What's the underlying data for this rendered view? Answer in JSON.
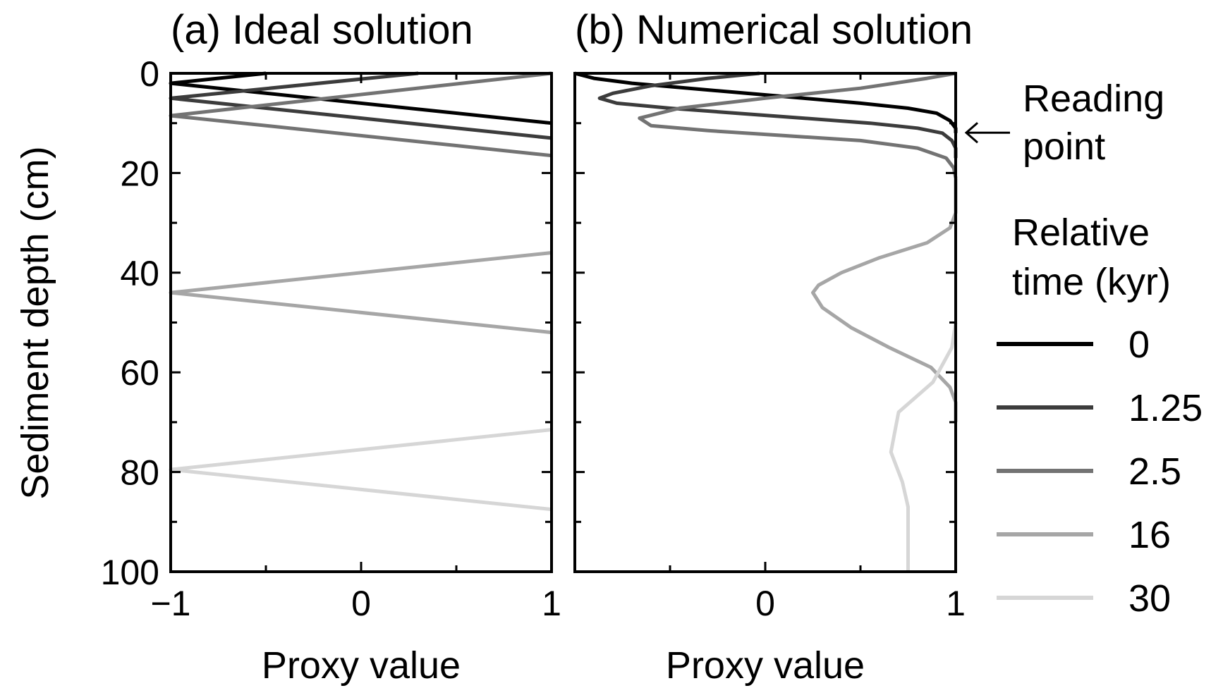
{
  "chart_data": [
    {
      "type": "line",
      "title": "(a) Ideal solution",
      "xlabel": "Proxy value",
      "ylabel": "Sediment depth (cm)",
      "xlim": [
        -1,
        1
      ],
      "ylim": [
        0,
        100
      ],
      "y_inverted": true,
      "x_ticks": [
        -1,
        0,
        1
      ],
      "x_tick_labels": [
        "−1",
        "0",
        "1"
      ],
      "y_ticks": [
        0,
        20,
        40,
        60,
        80,
        100
      ],
      "y_tick_labels": [
        "0",
        "20",
        "40",
        "60",
        "80",
        "100"
      ],
      "series": [
        {
          "name": "0",
          "color": "#000000",
          "x": [
            -0.5,
            -1.0,
            1.0
          ],
          "y": [
            0,
            2,
            10
          ]
        },
        {
          "name": "1.25",
          "color": "#3c3c3c",
          "x": [
            0.3,
            -1.0,
            1.0
          ],
          "y": [
            0,
            5,
            13
          ]
        },
        {
          "name": "2.5",
          "color": "#737373",
          "x": [
            1.0,
            -1.0,
            1.0
          ],
          "y": [
            0,
            8.5,
            16.5
          ]
        },
        {
          "name": "16",
          "color": "#a6a6a6",
          "x": [
            1.0,
            -1.0,
            1.0
          ],
          "y": [
            36,
            44,
            52
          ]
        },
        {
          "name": "30",
          "color": "#d6d6d6",
          "x": [
            1.0,
            -1.0,
            1.0
          ],
          "y": [
            71.5,
            79.5,
            87.5
          ]
        }
      ]
    },
    {
      "type": "line",
      "title": "(b) Numerical solution",
      "xlabel": "Proxy value",
      "xlim": [
        -1,
        1
      ],
      "ylim": [
        0,
        100
      ],
      "y_inverted": true,
      "x_ticks": [
        0,
        1
      ],
      "x_tick_labels": [
        "0",
        "1"
      ],
      "annotation": "Reading point",
      "annotation_depth": 11.5,
      "legend_title": "Relative time (kyr)",
      "legend_position": "right",
      "series": [
        {
          "name": "0",
          "color": "#000000",
          "x": [
            -1.0,
            -0.9,
            -0.7,
            -0.4,
            -0.1,
            0.2,
            0.5,
            0.75,
            0.9,
            0.97,
            1.0,
            1.0
          ],
          "y": [
            0,
            1,
            2,
            3,
            4,
            5,
            6,
            7,
            8,
            9.5,
            11,
            12
          ]
        },
        {
          "name": "1.25",
          "color": "#3c3c3c",
          "x": [
            -0.03,
            -0.3,
            -0.6,
            -0.8,
            -0.87,
            -0.78,
            -0.5,
            -0.15,
            0.2,
            0.55,
            0.8,
            0.93,
            0.98,
            1.0,
            1.0
          ],
          "y": [
            0,
            1,
            2.5,
            4,
            5,
            6,
            7,
            8,
            9,
            10,
            11,
            12,
            13.5,
            15,
            17
          ]
        },
        {
          "name": "2.5",
          "color": "#737373",
          "x": [
            1.0,
            0.85,
            0.5,
            0.0,
            -0.45,
            -0.66,
            -0.6,
            -0.3,
            0.1,
            0.5,
            0.8,
            0.95,
            0.99,
            1.0
          ],
          "y": [
            0,
            1,
            3,
            5,
            7,
            9,
            10.5,
            11.5,
            12.5,
            13.5,
            15,
            17,
            19,
            21
          ]
        },
        {
          "name": "16",
          "color": "#a6a6a6",
          "x": [
            1.0,
            1.0,
            0.97,
            0.85,
            0.6,
            0.4,
            0.28,
            0.25,
            0.3,
            0.45,
            0.65,
            0.87,
            0.97,
            1.0,
            1.0
          ],
          "y": [
            21,
            28,
            31,
            34,
            37,
            40,
            42.5,
            44,
            47,
            51,
            55,
            59,
            63,
            66,
            70
          ]
        },
        {
          "name": "30",
          "color": "#d6d6d6",
          "x": [
            1.0,
            0.98,
            0.88,
            0.7,
            0.66,
            0.72,
            0.75,
            0.75
          ],
          "y": [
            50,
            55,
            62,
            68,
            76,
            82,
            87,
            100
          ]
        }
      ]
    }
  ]
}
